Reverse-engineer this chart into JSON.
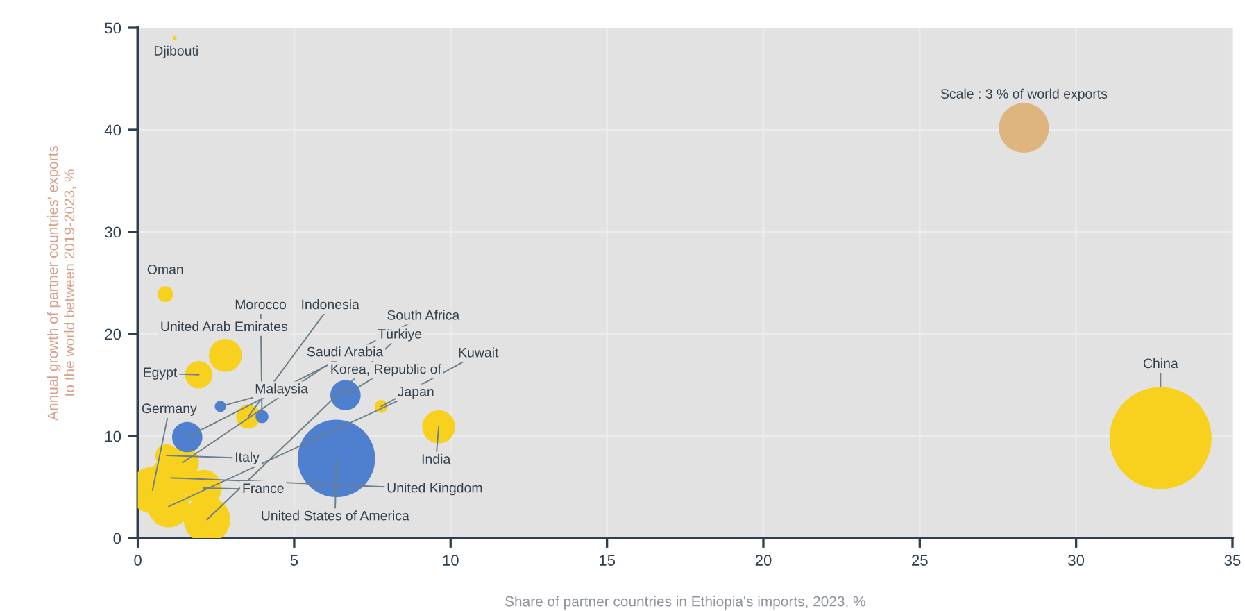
{
  "chart_data": {
    "type": "bubble",
    "xlabel": "Share of partner countries in Ethiopia's imports, 2023, %",
    "ylabel": "Annual growth of partner countries' exports\nto the world between 2019-2023, %",
    "xlim": [
      0,
      35
    ],
    "xticks": [
      0,
      5,
      10,
      15,
      20,
      25,
      30,
      35
    ],
    "ylim": [
      0,
      50
    ],
    "yticks": [
      0,
      10,
      20,
      30,
      40,
      50
    ],
    "grid": true,
    "size_legend": [
      {
        "value": 3,
        "label": "Scale : 3 % of world exports"
      }
    ],
    "series": [
      {
        "color": "#f7d11e",
        "x": [
          32.7,
          0.47,
          2.21,
          1.06,
          0.99,
          2.1,
          1.43,
          2.8,
          9.62,
          1.95,
          3.53,
          0.92,
          0.88,
          7.78,
          1.18
        ],
        "values": [
          9.8,
          4.7,
          1.8,
          5.9,
          3.1,
          4.9,
          7.4,
          17.9,
          10.9,
          16.0,
          11.9,
          8.1,
          23.9,
          12.9,
          49.0
        ],
        "sizes": [
          12.5,
          2.6,
          2.6,
          2.1,
          2.1,
          1.6,
          1.3,
          1.3,
          1.3,
          0.9,
          0.7,
          0.6,
          0.3,
          0.2,
          0.02
        ]
      },
      {
        "color": "#4f7fcf",
        "x": [
          6.35,
          6.64,
          1.58,
          3.97,
          2.64
        ],
        "values": [
          7.8,
          14.0,
          9.9,
          11.9,
          12.9
        ],
        "sizes": [
          7.2,
          1.1,
          1.1,
          0.2,
          0.15
        ]
      }
    ],
    "annotations": [
      {
        "text": "Djibouti",
        "x": 1.18,
        "y": 49.0
      },
      {
        "text": "Oman",
        "x": 0.88,
        "y": 23.9
      },
      {
        "text": "Morocco",
        "x": 3.97,
        "y": 11.9
      },
      {
        "text": "Indonesia",
        "x": 3.53,
        "y": 11.9
      },
      {
        "text": "United Arab Emirates",
        "x": 2.8,
        "y": 17.9
      },
      {
        "text": "South Africa",
        "x": 1.58,
        "y": 9.9
      },
      {
        "text": "Türkiye",
        "x": 2.21,
        "y": 1.8
      },
      {
        "text": "Saudi Arabia",
        "x": 1.43,
        "y": 7.4
      },
      {
        "text": "Korea, Republic of",
        "x": 6.64,
        "y": 14.0
      },
      {
        "text": "Kuwait",
        "x": 7.78,
        "y": 12.9
      },
      {
        "text": "Egypt",
        "x": 1.95,
        "y": 16.0
      },
      {
        "text": "Malaysia",
        "x": 2.64,
        "y": 12.9
      },
      {
        "text": "Japan",
        "x": 0.99,
        "y": 3.1
      },
      {
        "text": "Germany",
        "x": 0.47,
        "y": 4.7
      },
      {
        "text": "India",
        "x": 9.62,
        "y": 10.9
      },
      {
        "text": "Italy",
        "x": 0.92,
        "y": 8.1
      },
      {
        "text": "France",
        "x": 2.1,
        "y": 4.9
      },
      {
        "text": "United Kingdom",
        "x": 1.06,
        "y": 5.9
      },
      {
        "text": "United States of America",
        "x": 6.35,
        "y": 7.8
      },
      {
        "text": "China",
        "x": 32.7,
        "y": 9.8
      }
    ]
  }
}
